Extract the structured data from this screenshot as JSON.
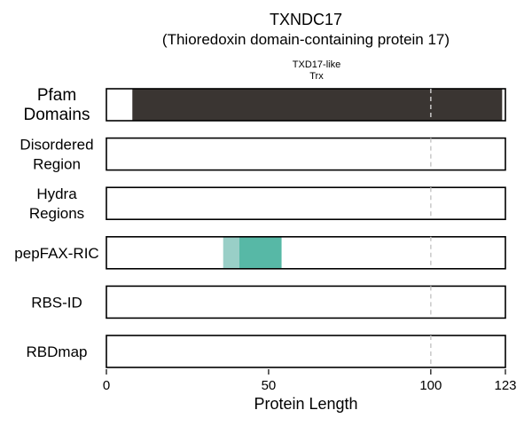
{
  "chart_data": {
    "type": "bar",
    "title": "TXNDC17",
    "subtitle": "(Thioredoxin domain-containing protein 17)",
    "xlabel": "Protein Length",
    "xlim": [
      0,
      123
    ],
    "x_ticks": [
      0,
      50,
      100,
      123
    ],
    "reference_line_x": 100,
    "tracks": [
      {
        "label": "Pfam Domains",
        "segments": [
          {
            "start": 8,
            "end": 122,
            "color": "#3a3532",
            "label": "TXD17-like Trx"
          }
        ]
      },
      {
        "label": "Disordered Region",
        "segments": []
      },
      {
        "label": "Hydra Regions",
        "segments": []
      },
      {
        "label": "pepFAX-RIC",
        "segments": [
          {
            "start": 36,
            "end": 41,
            "color": "#99cfc7",
            "label": ""
          },
          {
            "start": 41,
            "end": 54,
            "color": "#57b8a6",
            "label": ""
          }
        ]
      },
      {
        "label": "RBS-ID",
        "segments": []
      },
      {
        "label": "RBDmap",
        "segments": []
      }
    ]
  }
}
